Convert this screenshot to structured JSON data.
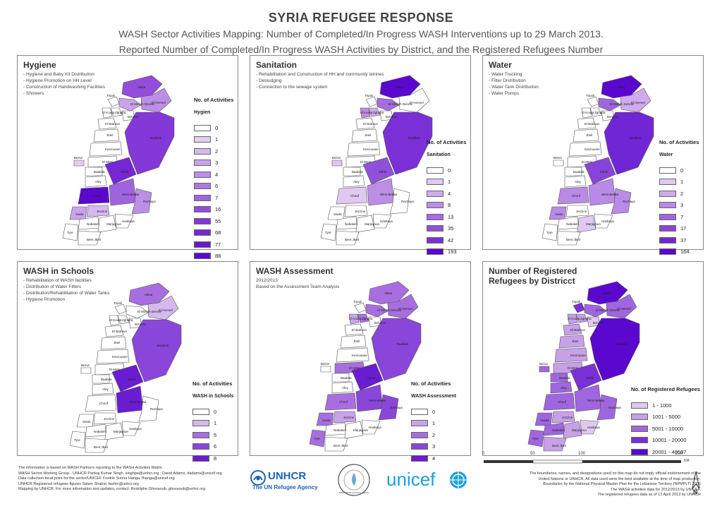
{
  "header": {
    "title": "SYRIA REFUGEE RESPONSE",
    "subtitle1": "WASH Sector Activities Mapping: Number of Completed/In Progress WASH Interventions up to 29 March 2013.",
    "subtitle2": "Reported Number of Completed/In Progress WASH Activities by District, and the Registered Refugees Number"
  },
  "district_labels": [
    "Akkar",
    "Tripoli",
    "El Minieh Dennie",
    "El Hermel",
    "Zgharta",
    "El Koura",
    "Bcharre",
    "El Batroun",
    "Jbeil",
    "Baalbek",
    "Kesrouane",
    "El Metn",
    "Beirut",
    "Baabda",
    "Aley",
    "Zahle",
    "Chouf",
    "West Bekaa",
    "Jezzine",
    "Rachaya",
    "Saida",
    "Nabatieh",
    "Marjayoun",
    "Hasbaya",
    "Tyre",
    "Bent Jbeil"
  ],
  "colors": {
    "c0": "#ffffff",
    "c1": "#dcc0ee",
    "c2": "#c7a0e8",
    "c3": "#b07ae0",
    "c4": "#9a58dc",
    "c5": "#8440d8",
    "c6": "#7028d6",
    "c7": "#5a10d0"
  },
  "panels": [
    {
      "id": "hygiene",
      "title": "Hygiene",
      "items": [
        "Hygiene and Baby Kit Distribution",
        "Hygiene Promotion on HH Level",
        "Construction of Handwashing Facilities",
        "Showers"
      ],
      "legend_title": "No. of Activities",
      "legend_sub": "Hygien",
      "legend": [
        {
          "label": "0",
          "color": "#ffffff"
        },
        {
          "label": "1",
          "color": "#e3cdf1"
        },
        {
          "label": "2",
          "color": "#d6b8ee"
        },
        {
          "label": "3",
          "color": "#c9a3ea"
        },
        {
          "label": "4",
          "color": "#bc8ee6"
        },
        {
          "label": "6",
          "color": "#ae78e2"
        },
        {
          "label": "7",
          "color": "#a063de"
        },
        {
          "label": "16",
          "color": "#924ddb"
        },
        {
          "label": "55",
          "color": "#8438d8"
        },
        {
          "label": "68",
          "color": "#7626d5"
        },
        {
          "label": "77",
          "color": "#6818d2"
        },
        {
          "label": "88",
          "color": "#5a08ce"
        }
      ],
      "fills": [
        "#924ddb",
        "#ffffff",
        "#c9a3ea",
        "#bc8ee6",
        "#ffffff",
        "#ffffff",
        "#ffffff",
        "#ffffff",
        "#ffffff",
        "#8438d8",
        "#ffffff",
        "#ffffff",
        "#e3cdf1",
        "#ffffff",
        "#ffffff",
        "#7626d5",
        "#5a08ce",
        "#a063de",
        "#d6b8ee",
        "#bc8ee6",
        "#c9a3ea",
        "#ffffff",
        "#ffffff",
        "#ffffff",
        "#ffffff",
        "#ffffff"
      ]
    },
    {
      "id": "sanitation",
      "title": "Sanitation",
      "items": [
        "Rehabilitation and Construction of HH and community latrines",
        "Desludging",
        "Connection to the sewage system"
      ],
      "legend_title": "No. of Activities",
      "legend_sub": "Sanitation",
      "legend": [
        {
          "label": "0",
          "color": "#ffffff"
        },
        {
          "label": "1",
          "color": "#e0c8f0"
        },
        {
          "label": "4",
          "color": "#cfaaec"
        },
        {
          "label": "8",
          "color": "#bc8ee6"
        },
        {
          "label": "13",
          "color": "#a66ce0"
        },
        {
          "label": "35",
          "color": "#9050da"
        },
        {
          "label": "42",
          "color": "#7a30d6"
        },
        {
          "label": "193",
          "color": "#5a08ce"
        }
      ],
      "fills": [
        "#5a08ce",
        "#ffffff",
        "#a66ce0",
        "#ffffff",
        "#cfaaec",
        "#bc8ee6",
        "#ffffff",
        "#ffffff",
        "#ffffff",
        "#7a30d6",
        "#ffffff",
        "#ffffff",
        "#e0c8f0",
        "#ffffff",
        "#ffffff",
        "#9050da",
        "#e0c8f0",
        "#bc8ee6",
        "#ffffff",
        "#ffffff",
        "#ffffff",
        "#ffffff",
        "#ffffff",
        "#ffffff",
        "#ffffff",
        "#ffffff"
      ]
    },
    {
      "id": "water",
      "title": "Water",
      "items": [
        "Water Trucking",
        "Filter Distribution",
        "Water Tank Distribution",
        "Water Pumps"
      ],
      "legend_title": "No. of Activities",
      "legend_sub": "Water",
      "legend": [
        {
          "label": "0",
          "color": "#ffffff"
        },
        {
          "label": "1",
          "color": "#e0c8f0"
        },
        {
          "label": "2",
          "color": "#cfaaec"
        },
        {
          "label": "3",
          "color": "#b98ae6"
        },
        {
          "label": "7",
          "color": "#a066df"
        },
        {
          "label": "17",
          "color": "#8844d8"
        },
        {
          "label": "37",
          "color": "#7026d4"
        },
        {
          "label": "164",
          "color": "#5a08ce"
        }
      ],
      "fills": [
        "#5a08ce",
        "#ffffff",
        "#a066df",
        "#cfaaec",
        "#ffffff",
        "#ffffff",
        "#ffffff",
        "#ffffff",
        "#ffffff",
        "#7026d4",
        "#ffffff",
        "#ffffff",
        "#ffffff",
        "#ffffff",
        "#ffffff",
        "#8844d8",
        "#b98ae6",
        "#b98ae6",
        "#ffffff",
        "#b98ae6",
        "#b98ae6",
        "#ffffff",
        "#e0c8f0",
        "#ffffff",
        "#ffffff",
        "#ffffff"
      ]
    },
    {
      "id": "schools",
      "title": "WASH in Schools",
      "items": [
        "Rehabilitation of WASH facilities",
        "Distribution of Water Filters",
        "Distribution/Rehabilitation of Water Tanks",
        "Hygiene Promotion"
      ],
      "legend_title": "No. of Activities",
      "legend_sub": "WASH in Schools",
      "legend": [
        {
          "label": "0",
          "color": "#ffffff"
        },
        {
          "label": "1",
          "color": "#d6b8ee"
        },
        {
          "label": "5",
          "color": "#a86ee0"
        },
        {
          "label": "6",
          "color": "#8a46d8"
        },
        {
          "label": "8",
          "color": "#6a1cd2"
        }
      ],
      "fills": [
        "#a86ee0",
        "#ffffff",
        "#ffffff",
        "#d6b8ee",
        "#ffffff",
        "#ffffff",
        "#ffffff",
        "#ffffff",
        "#ffffff",
        "#8a46d8",
        "#ffffff",
        "#ffffff",
        "#ffffff",
        "#ffffff",
        "#ffffff",
        "#6a1cd2",
        "#ffffff",
        "#6a1cd2",
        "#ffffff",
        "#ffffff",
        "#ffffff",
        "#ffffff",
        "#ffffff",
        "#ffffff",
        "#ffffff",
        "#ffffff"
      ]
    },
    {
      "id": "assessment",
      "title": "WASH Assessment",
      "text": [
        "2012/2013",
        "Based on the Assessment Team Analysis"
      ],
      "legend_title": "No. of Activities",
      "legend_sub": "WASH Assessment",
      "legend": [
        {
          "label": "0",
          "color": "#ffffff"
        },
        {
          "label": "1",
          "color": "#c9a3ea"
        },
        {
          "label": "2",
          "color": "#a86ee0"
        },
        {
          "label": "3",
          "color": "#8a46d8"
        },
        {
          "label": "4",
          "color": "#6a1cd2"
        }
      ],
      "fills": [
        "#a86ee0",
        "#ffffff",
        "#a86ee0",
        "#a86ee0",
        "#a86ee0",
        "#c9a3ea",
        "#ffffff",
        "#ffffff",
        "#ffffff",
        "#8a46d8",
        "#ffffff",
        "#a86ee0",
        "#ffffff",
        "#ffffff",
        "#ffffff",
        "#6a1cd2",
        "#a86ee0",
        "#8a46d8",
        "#c9a3ea",
        "#8a46d8",
        "#a86ee0",
        "#ffffff",
        "#ffffff",
        "#ffffff",
        "#a86ee0",
        "#ffffff"
      ]
    },
    {
      "id": "refugees",
      "title": "Number of Registered",
      "title2": "Refugees by Districct",
      "legend_title": "No. of Registered Refugees",
      "legend_sub": "",
      "legend": [
        {
          "label": "1 - 1000",
          "color": "#e0c8f0"
        },
        {
          "label": "1001 - 5000",
          "color": "#c7a0e8"
        },
        {
          "label": "5001 - 10000",
          "color": "#a066df"
        },
        {
          "label": "10001 - 20000",
          "color": "#7a30d6"
        },
        {
          "label": "20001 - 48597",
          "color": "#5a08ce"
        }
      ],
      "fills": [
        "#5a08ce",
        "#7a30d6",
        "#a066df",
        "#a066df",
        "#c7a0e8",
        "#c7a0e8",
        "#e0c8f0",
        "#c7a0e8",
        "#c7a0e8",
        "#5a08ce",
        "#c7a0e8",
        "#c7a0e8",
        "#a066df",
        "#a066df",
        "#a066df",
        "#7a30d6",
        "#a066df",
        "#a066df",
        "#c7a0e8",
        "#a066df",
        "#a066df",
        "#a066df",
        "#c7a0e8",
        "#e0c8f0",
        "#a066df",
        "#c7a0e8"
      ]
    }
  ],
  "footer": {
    "lines": [
      "The information is based on WASH Partners reporting to the WASH Activities Matrix",
      "WASH Sector Working Group - UNHCR Pankaj Kumar Singh, singhpa@unhcr.org ; David Adams, dadams@unicef.org",
      "Data collection focal point for the sector/UNICEF Fredrik Sunna Hanga, fhanga@unicef.org",
      "UNHCR Registered refugees figures Salam Shahin: fashin@unhcr.org",
      "Mapping by UNHCR. For more information and updates, contact: Rodolphe Ghossoub, ghossoub@unhcr.org"
    ]
  },
  "logos": {
    "unhcr": "UNHCR",
    "unhcr_tag": "The UN Refugee Agency",
    "wash": "WASH Working Group Lebanon",
    "unicef": "unicef"
  },
  "scale": {
    "labels": [
      "0",
      "50",
      "100",
      "200"
    ],
    "unit": "KM"
  },
  "disclaimer": {
    "lines": [
      "The boundaries, names, and designations used on this map do not imply official endorsement of the",
      "United Nations or UNHCR. All data used were the best available at the time of map production.",
      "Boundaries by the National Physical Master Plan for the Lebanese Territory (NPMPLT) 2005",
      "The WASH activities data for 2012/2013 by UNICEF.",
      "The registered refugees data as of 13 April 2013 by UNHCR"
    ]
  },
  "north": "N"
}
